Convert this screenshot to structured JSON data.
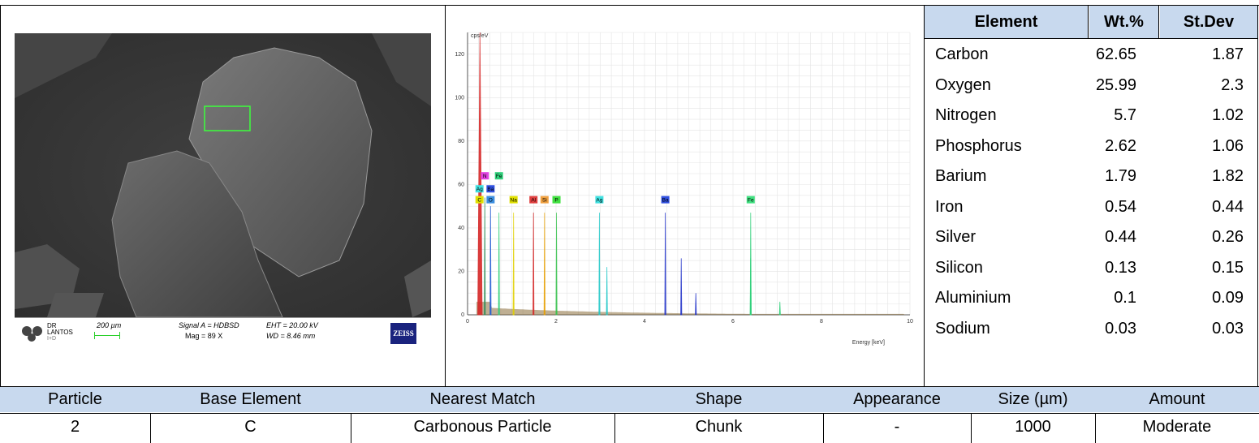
{
  "sem": {
    "logo_text": [
      "DR",
      "LANTOS"
    ],
    "logo_sub": "I+D",
    "scale_label": "200 µm",
    "signal": "Signal A = HDBSD",
    "mag": "Mag =   89 X",
    "eht": "EHT = 20.00 kV",
    "wd": "WD = 8.46 mm",
    "brand": "ZEISS"
  },
  "chart_data": {
    "type": "line",
    "title": "",
    "ylabel": "cps/eV",
    "xlabel": "Energy [keV]",
    "xlim": [
      0,
      10
    ],
    "ylim": [
      0,
      130
    ],
    "xticks": [
      0,
      2,
      4,
      6,
      8,
      10
    ],
    "xtick_labels": [
      "0",
      "2",
      "4",
      "6",
      "8",
      "10"
    ],
    "yticks": [
      0,
      20,
      40,
      60,
      80,
      100,
      120
    ],
    "grid": true,
    "peaks": [
      {
        "element": "C",
        "energy": 0.28,
        "height": 130,
        "color": "#d62828"
      },
      {
        "element": "N",
        "energy": 0.39,
        "height": 54,
        "color": "#2e8b57"
      },
      {
        "element": "O",
        "energy": 0.52,
        "height": 50,
        "color": "#1e5bd6"
      },
      {
        "element": "Fe",
        "energy": 0.71,
        "height": 47,
        "color": "#2fd07a"
      },
      {
        "element": "Na",
        "energy": 1.04,
        "height": 47,
        "color": "#e0d000"
      },
      {
        "element": "Al",
        "energy": 1.49,
        "height": 47,
        "color": "#d62828"
      },
      {
        "element": "Si",
        "energy": 1.74,
        "height": 47,
        "color": "#e8a000"
      },
      {
        "element": "P",
        "energy": 2.01,
        "height": 47,
        "color": "#33c24a"
      },
      {
        "element": "Ag",
        "energy": 2.98,
        "height": 47,
        "color": "#20c8c8"
      },
      {
        "element": "Ag",
        "energy": 3.15,
        "height": 22,
        "color": "#20c8c8"
      },
      {
        "element": "Ba",
        "energy": 4.47,
        "height": 47,
        "color": "#1e2fc8"
      },
      {
        "element": "Ba",
        "energy": 4.83,
        "height": 26,
        "color": "#1e2fc8"
      },
      {
        "element": "Ba",
        "energy": 5.16,
        "height": 10,
        "color": "#1e2fc8"
      },
      {
        "element": "Fe",
        "energy": 6.4,
        "height": 47,
        "color": "#2fd07a"
      },
      {
        "element": "Fe",
        "energy": 6.4,
        "height": 26,
        "color": "#2fd07a"
      },
      {
        "element": "Fe",
        "energy": 7.06,
        "height": 6,
        "color": "#2fd07a"
      }
    ],
    "labels": [
      {
        "text": "N",
        "energy": 0.39,
        "y": 64,
        "color": "#e040e0"
      },
      {
        "text": "Fe",
        "energy": 0.71,
        "y": 64,
        "color": "#2fd07a"
      },
      {
        "text": "Ag",
        "energy": 0.27,
        "y": 58,
        "color": "#40e0e0"
      },
      {
        "text": "Ba",
        "energy": 0.52,
        "y": 58,
        "color": "#3050e0"
      },
      {
        "text": "C",
        "energy": 0.27,
        "y": 53,
        "color": "#e0e000"
      },
      {
        "text": "O",
        "energy": 0.52,
        "y": 53,
        "color": "#3a8ee0"
      },
      {
        "text": "Na",
        "energy": 1.04,
        "y": 53,
        "color": "#e0e000"
      },
      {
        "text": "Al",
        "energy": 1.49,
        "y": 53,
        "color": "#e04040"
      },
      {
        "text": "Si",
        "energy": 1.74,
        "y": 53,
        "color": "#f0a040"
      },
      {
        "text": "P",
        "energy": 2.01,
        "y": 53,
        "color": "#40e040"
      },
      {
        "text": "Ag",
        "energy": 2.98,
        "y": 53,
        "color": "#40e0e0"
      },
      {
        "text": "Ba",
        "energy": 4.47,
        "y": 53,
        "color": "#3050e0"
      },
      {
        "text": "Fe",
        "energy": 6.4,
        "y": 53,
        "color": "#40e080"
      }
    ]
  },
  "composition": {
    "headers": [
      "Element",
      "Wt.%",
      "St.Dev"
    ],
    "rows": [
      {
        "element": "Carbon",
        "wt": "62.65",
        "sd": "1.87"
      },
      {
        "element": "Oxygen",
        "wt": "25.99",
        "sd": "2.3"
      },
      {
        "element": "Nitrogen",
        "wt": "5.7",
        "sd": "1.02"
      },
      {
        "element": "Phosphorus",
        "wt": "2.62",
        "sd": "1.06"
      },
      {
        "element": "Barium",
        "wt": "1.79",
        "sd": "1.82"
      },
      {
        "element": "Iron",
        "wt": "0.54",
        "sd": "0.44"
      },
      {
        "element": "Silver",
        "wt": "0.44",
        "sd": "0.26"
      },
      {
        "element": "Silicon",
        "wt": "0.13",
        "sd": "0.15"
      },
      {
        "element": "Aluminium",
        "wt": "0.1",
        "sd": "0.09"
      },
      {
        "element": "Sodium",
        "wt": "0.03",
        "sd": "0.03"
      }
    ]
  },
  "particle_table": {
    "headers": [
      "Particle",
      "Base Element",
      "Nearest Match",
      "Shape",
      "Appearance",
      "Size (µm)",
      "Amount"
    ],
    "row": [
      "2",
      "C",
      "Carbonous Particle",
      "Chunk",
      "-",
      "1000",
      "Moderate"
    ]
  },
  "colors": {
    "header_fill": "#c8d9ee",
    "grid": "#e4e4e4"
  }
}
